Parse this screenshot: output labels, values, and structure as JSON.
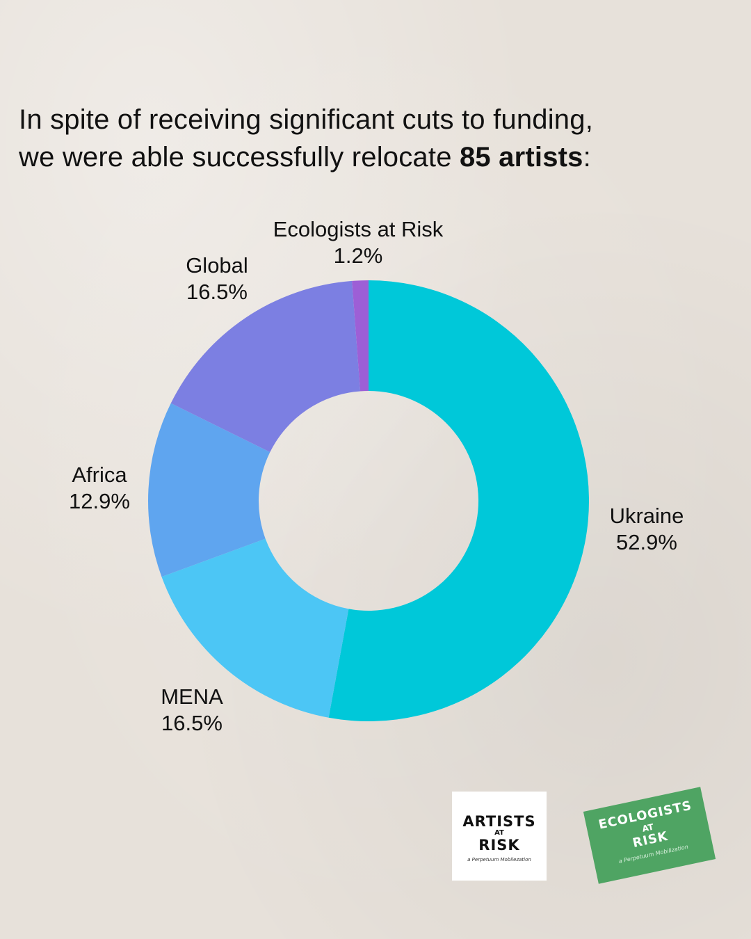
{
  "headline": {
    "line1": "In spite of receiving significant cuts to funding,",
    "line2_prefix": "we were able successfully relocate ",
    "line2_bold": "85 artists",
    "line2_suffix": ":"
  },
  "chart_data": {
    "type": "pie",
    "donut": true,
    "title": "",
    "start": "top",
    "direction": "clockwise",
    "slices": [
      {
        "label": "Ukraine",
        "value": 52.9,
        "display": "52.9%",
        "color": "#00c8d9"
      },
      {
        "label": "MENA",
        "value": 16.5,
        "display": "16.5%",
        "color": "#4cc6f5"
      },
      {
        "label": "Africa",
        "value": 12.9,
        "display": "12.9%",
        "color": "#5fa5ef"
      },
      {
        "label": "Global",
        "value": 16.5,
        "display": "16.5%",
        "color": "#7c7fe2"
      },
      {
        "label": "Ecologists at Risk",
        "value": 1.2,
        "display": "1.2%",
        "color": "#9d5fd6"
      }
    ]
  },
  "logos": {
    "artists_at_risk": {
      "line1": "ARTISTS",
      "line2": "AT",
      "line3": "RISK",
      "tagline": "a Perpetuum Mobilezation"
    },
    "ecologists_at_risk": {
      "line1": "ECOLOGISTS",
      "line2": "AT",
      "line3": "RISK",
      "tagline": "a Perpetuum Mobilization"
    }
  }
}
